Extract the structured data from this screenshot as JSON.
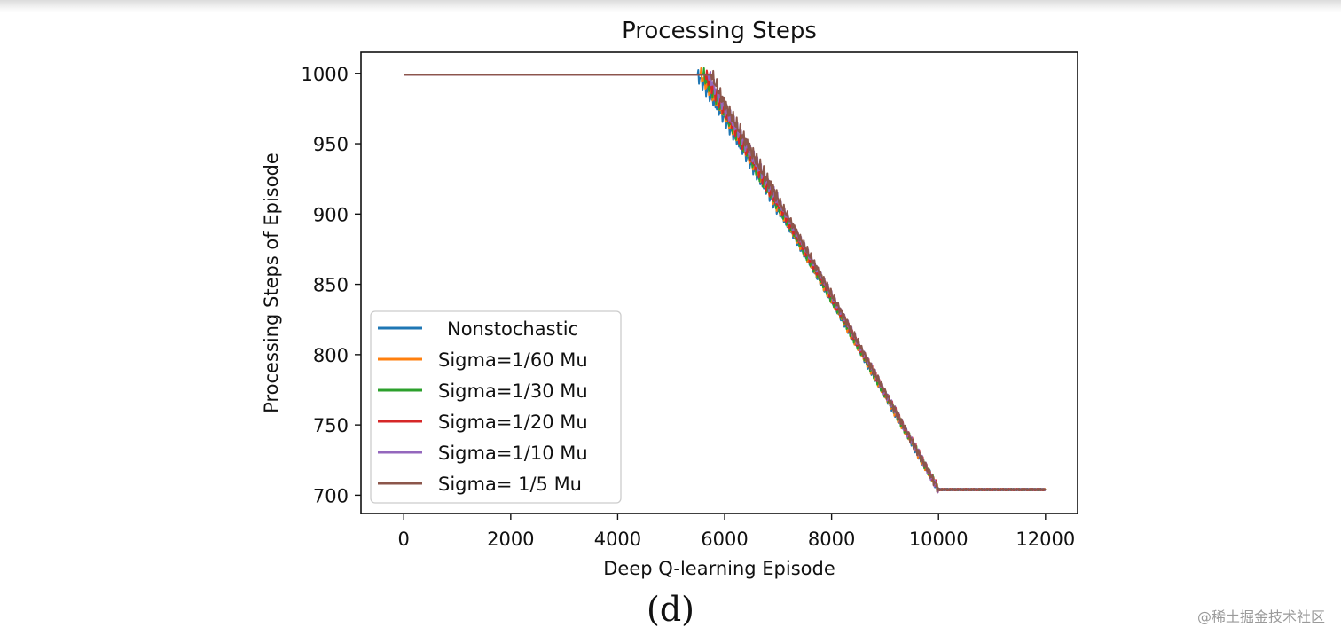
{
  "chart_data": {
    "type": "line",
    "title": "Processing Steps",
    "xlabel": "Deep Q-learning Episode",
    "ylabel": "Processing Steps of Episode",
    "xlim": [
      -800,
      12600
    ],
    "ylim": [
      687,
      1015
    ],
    "xticks": [
      0,
      2000,
      4000,
      6000,
      8000,
      10000,
      12000
    ],
    "yticks": [
      700,
      750,
      800,
      850,
      900,
      950,
      1000
    ],
    "legend_position": "lower-left",
    "series": [
      {
        "name": "Nonstochastic",
        "color": "#1f77b4",
        "x": [
          0,
          5500,
          6000,
          8000,
          10000,
          12000
        ],
        "values": [
          999,
          999,
          968,
          838,
          704,
          704
        ]
      },
      {
        "name": "Sigma=1/60 Mu",
        "color": "#ff7f0e",
        "x": [
          0,
          5550,
          6000,
          8000,
          10000,
          12000
        ],
        "values": [
          999,
          999,
          970,
          839,
          704,
          704
        ]
      },
      {
        "name": "Sigma=1/30 Mu",
        "color": "#2ca02c",
        "x": [
          0,
          5600,
          6000,
          8000,
          10000,
          12000
        ],
        "values": [
          999,
          999,
          972,
          840,
          704,
          704
        ]
      },
      {
        "name": "Sigma=1/20 Mu",
        "color": "#d62728",
        "x": [
          0,
          5650,
          6000,
          8000,
          10000,
          12000
        ],
        "values": [
          999,
          999,
          974,
          841,
          704,
          704
        ]
      },
      {
        "name": "Sigma=1/10 Mu",
        "color": "#9467bd",
        "x": [
          0,
          5700,
          6000,
          8000,
          10000,
          12000
        ],
        "values": [
          999,
          999,
          976,
          842,
          704,
          704
        ]
      },
      {
        "name": "Sigma= 1/5  Mu",
        "color": "#8c564b",
        "x": [
          0,
          5750,
          6000,
          8000,
          10000,
          12000
        ],
        "values": [
          999,
          999,
          978,
          843,
          704,
          704
        ]
      }
    ]
  },
  "caption": "(d)",
  "watermark": "@稀土掘金技术社区"
}
